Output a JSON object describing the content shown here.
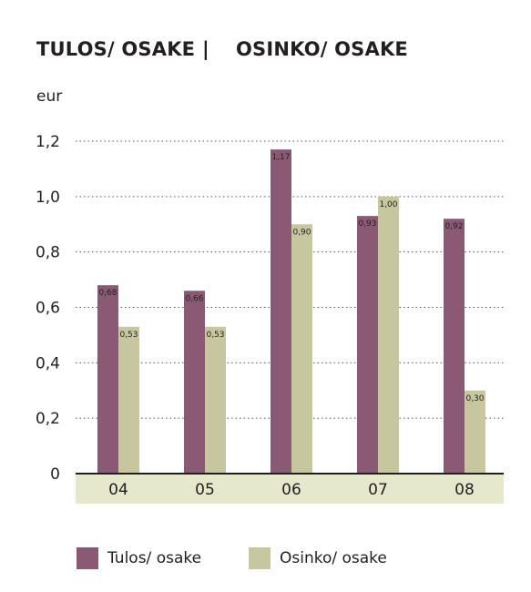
{
  "title": {
    "left": "TULOS/ OSAKE",
    "separator": "|",
    "right": "OSINKO/ OSAKE"
  },
  "unit_label": "eur",
  "chart_data": {
    "type": "bar",
    "title": "TULOS/ OSAKE | OSINKO/ OSAKE",
    "ylabel": "eur",
    "xlabel": "",
    "categories": [
      "04",
      "05",
      "06",
      "07",
      "08"
    ],
    "ylim": [
      0,
      1.2
    ],
    "yticks": [
      0,
      0.2,
      0.4,
      0.6,
      0.8,
      1.0,
      1.2
    ],
    "ytick_labels": [
      "0",
      "0,2",
      "0,4",
      "0,6",
      "0,8",
      "1,0",
      "1,2"
    ],
    "grid": "dotted horizontal",
    "legend_position": "bottom",
    "series": [
      {
        "name": "Tulos/ osake",
        "color": "#8a5a74",
        "values": [
          0.68,
          0.66,
          1.17,
          0.93,
          0.92
        ],
        "value_labels": [
          "0,68",
          "0,66",
          "1,17",
          "0,93",
          "0,92"
        ]
      },
      {
        "name": "Osinko/ osake",
        "color": "#c6c79f",
        "values": [
          0.53,
          0.53,
          0.9,
          1.0,
          0.3
        ],
        "value_labels": [
          "0,53",
          "0,53",
          "0,90",
          "1,00",
          "0,30"
        ]
      }
    ],
    "axis_band_color": "#e6e8cc"
  }
}
